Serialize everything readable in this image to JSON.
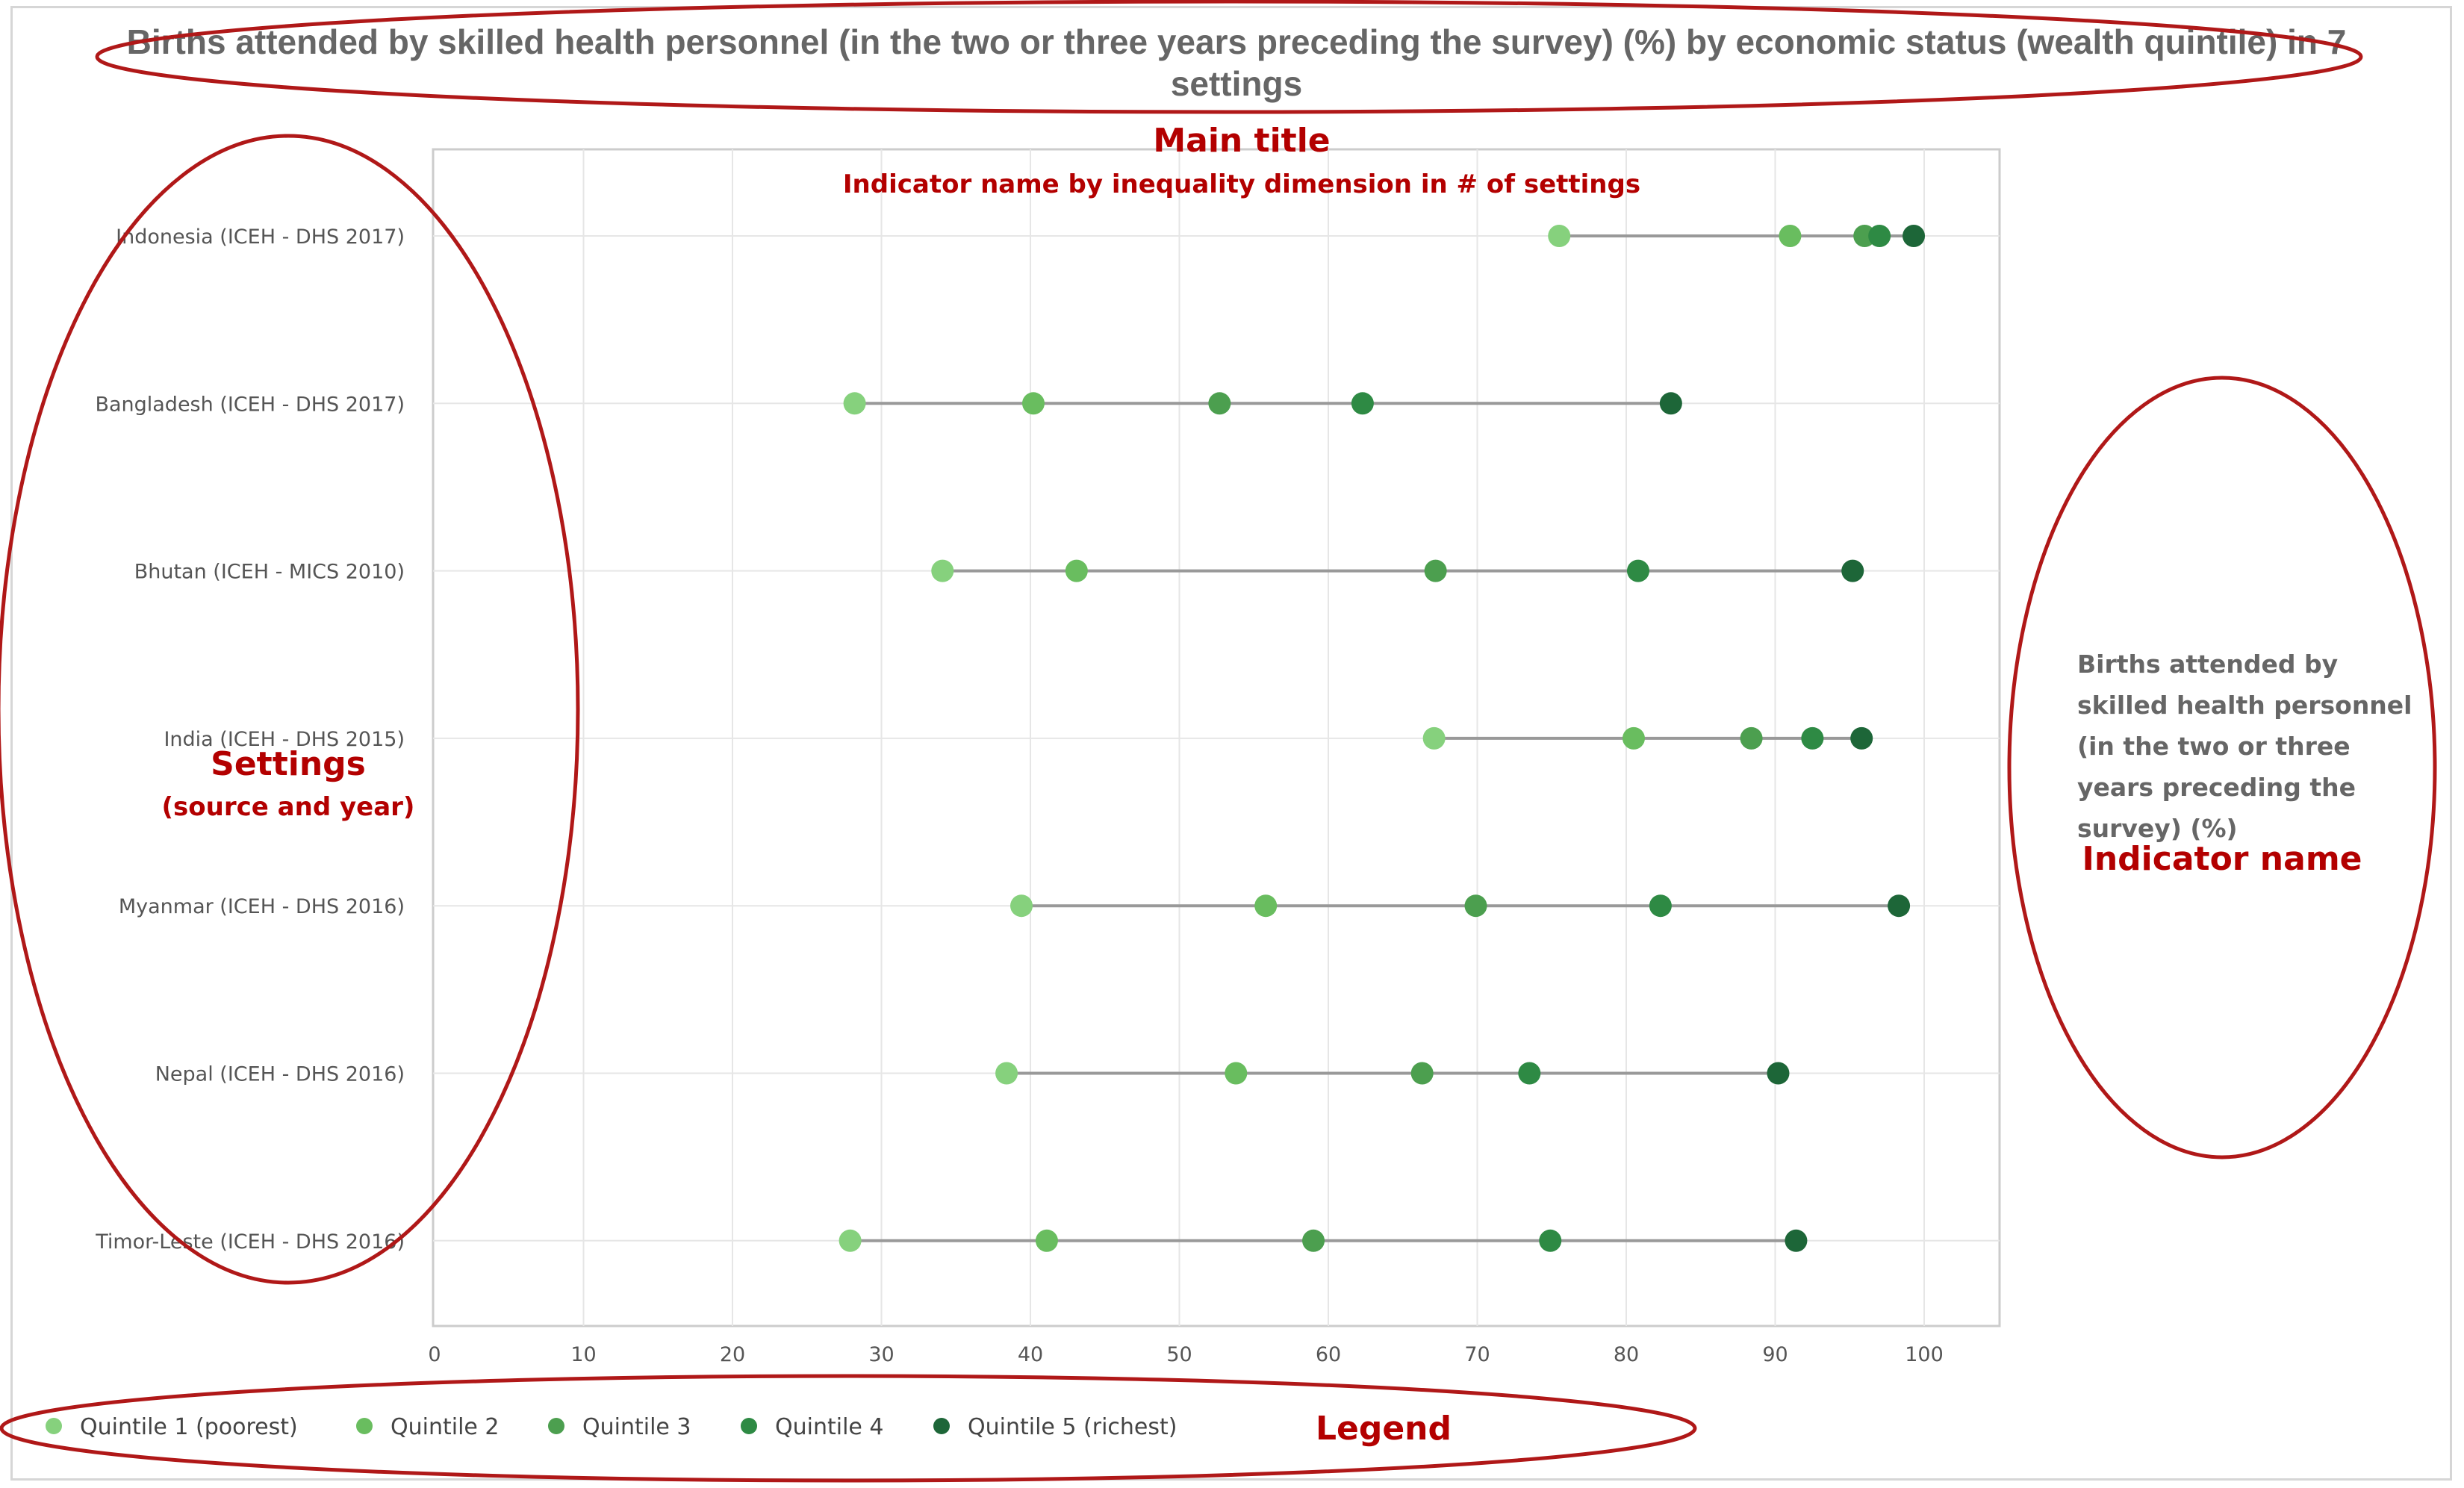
{
  "chart_data": {
    "type": "dumbbell",
    "title_lines": [
      "Births attended by skilled health personnel (in the two or three years preceding the survey) (%) by economic status (wealth quintile) in 7",
      "settings"
    ],
    "categories": [
      "Indonesia (ICEH - DHS 2017)",
      "Bangladesh (ICEH - DHS 2017)",
      "Bhutan (ICEH - MICS 2010)",
      "India (ICEH - DHS 2015)",
      "Myanmar (ICEH - DHS 2016)",
      "Nepal (ICEH - DHS 2016)",
      "Timor-Leste (ICEH - DHS 2016)"
    ],
    "series": [
      {
        "name": "Quintile 1 (poorest)",
        "color": "#86d17d",
        "values": [
          75.5,
          28.2,
          34.1,
          67.1,
          39.4,
          38.4,
          27.9
        ]
      },
      {
        "name": "Quintile 2",
        "color": "#69bd5f",
        "values": [
          91.0,
          40.2,
          43.1,
          80.5,
          55.8,
          53.8,
          41.1
        ]
      },
      {
        "name": "Quintile 3",
        "color": "#4c9f4f",
        "values": [
          96.0,
          52.7,
          67.2,
          88.4,
          69.9,
          66.3,
          59.0
        ]
      },
      {
        "name": "Quintile 4",
        "color": "#2e8a44",
        "values": [
          97.0,
          62.3,
          80.8,
          92.5,
          82.3,
          73.5,
          74.9
        ]
      },
      {
        "name": "Quintile 5 (richest)",
        "color": "#1d6638",
        "values": [
          99.3,
          83.0,
          95.2,
          95.8,
          98.3,
          90.2,
          91.4
        ]
      }
    ],
    "xlim": [
      0,
      100
    ],
    "xticks": [
      "0",
      "10",
      "20",
      "30",
      "40",
      "50",
      "60",
      "70",
      "80",
      "90",
      "100"
    ],
    "grid": true,
    "legend_position": "bottom-left",
    "side_label_lines": [
      "Births attended by",
      "skilled health personnel",
      "(in the two or three",
      "years preceding the",
      "survey) (%)"
    ],
    "connector_color": "#999999",
    "grid_color": "#e6e6e6"
  },
  "annotations": {
    "main_title": "Main title",
    "main_title_sub": "Indicator name by inequality dimension in # of settings",
    "settings": "Settings",
    "settings_sub": "(source and year)",
    "indicator_name": "Indicator name",
    "legend": "Legend",
    "color": "#b01818"
  }
}
